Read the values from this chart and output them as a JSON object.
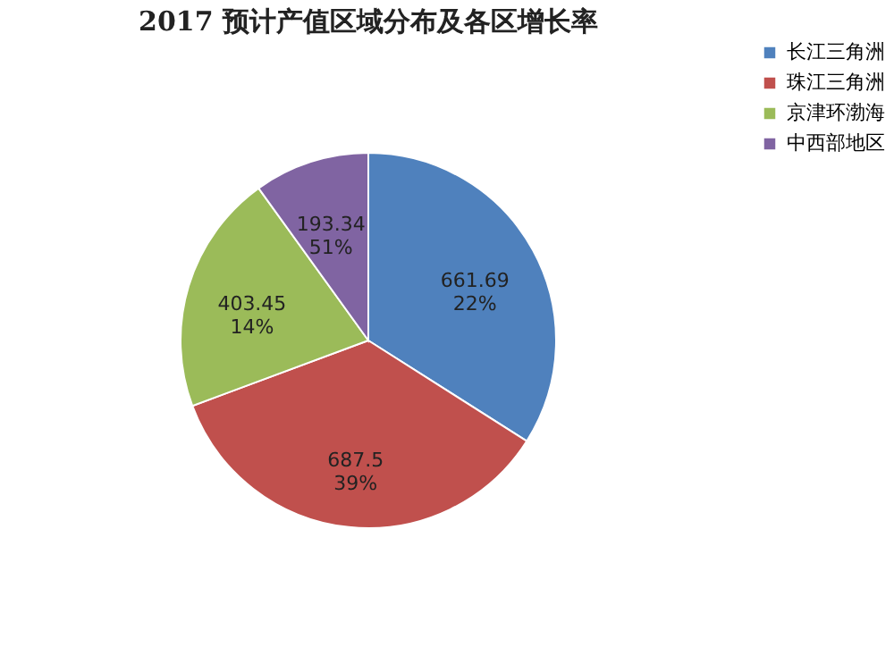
{
  "chart_data": {
    "type": "pie",
    "title": "2017 预计产值区域分布及各区增长率",
    "categories": [
      "长江三角洲",
      "珠江三角洲",
      "京津环渤海",
      "中西部地区"
    ],
    "values": [
      661.69,
      687.5,
      403.45,
      193.34
    ],
    "colors": [
      "#4f81bd",
      "#c0504d",
      "#9bbb59",
      "#8064a2"
    ],
    "value_labels": [
      "661.69\n22%",
      "687.5\n39%",
      "403.45\n14%",
      "193.34\n51%"
    ],
    "legend": "right"
  }
}
